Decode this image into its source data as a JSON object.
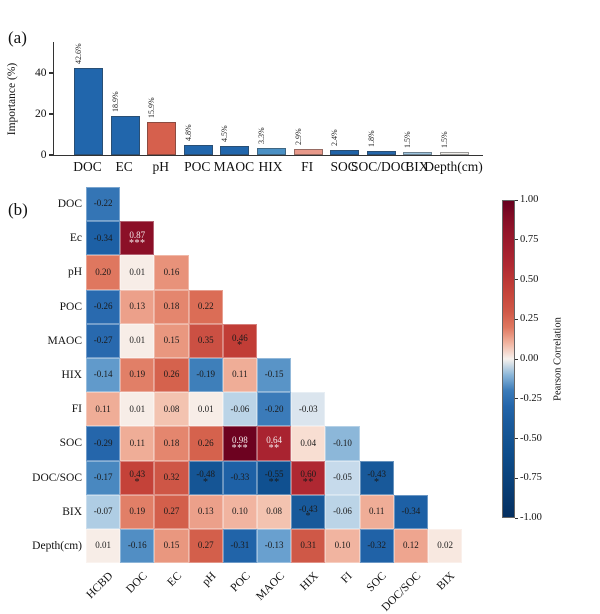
{
  "panel_a": {
    "tag": "(a)"
  },
  "panel_b": {
    "tag": "(b)"
  },
  "chart_data": [
    {
      "type": "bar",
      "ylabel": "Importance (%)",
      "xlabel": "",
      "ytick_labels": [
        "0",
        "20",
        "40"
      ],
      "ytick_values": [
        0,
        20,
        40
      ],
      "ylim": [
        0,
        55
      ],
      "grid": false,
      "categories": [
        "DOC",
        "EC",
        "pH",
        "POC",
        "MAOC",
        "HIX",
        "FI",
        "SOC",
        "SOC/DOC",
        "BIX",
        "Depth(cm)"
      ],
      "values": [
        42.6,
        18.9,
        15.9,
        4.8,
        4.5,
        3.3,
        2.9,
        2.4,
        1.8,
        1.5,
        1.5
      ],
      "value_labels": [
        "42.6%",
        "18.9%",
        "15.9%",
        "4.8%",
        "4.5%",
        "3.3%",
        "2.9%",
        "2.4%",
        "1.8%",
        "1.5%",
        "1.5%"
      ],
      "bar_colors": [
        "#2166ac",
        "#2166ac",
        "#d6604d",
        "#2166ac",
        "#2166ac",
        "#4a90c4",
        "#e8998a",
        "#1f63a8",
        "#2466aa",
        "#9dc4de",
        "#f0efec"
      ]
    },
    {
      "type": "heatmap",
      "shape": "lower-triangle",
      "x_categories": [
        "HCBD",
        "DOC",
        "EC",
        "pH",
        "POC",
        "MAOC",
        "HIX",
        "FI",
        "SOC",
        "DOC/SOC",
        "BIX"
      ],
      "y_categories": [
        "DOC",
        "Ec",
        "pH",
        "POC",
        "MAOC",
        "HIX",
        "FI",
        "SOC",
        "DOC/SOC",
        "BIX",
        "Depth(cm)"
      ],
      "rows": [
        {
          "label": "DOC",
          "values": [
            -0.22
          ],
          "stars": [
            ""
          ]
        },
        {
          "label": "Ec",
          "values": [
            -0.34,
            0.87
          ],
          "stars": [
            "",
            "***"
          ]
        },
        {
          "label": "pH",
          "values": [
            0.2,
            0.01,
            0.16
          ],
          "stars": [
            "",
            "",
            ""
          ]
        },
        {
          "label": "POC",
          "values": [
            -0.26,
            0.13,
            0.18,
            0.22
          ],
          "stars": [
            "",
            "",
            "",
            ""
          ]
        },
        {
          "label": "MAOC",
          "values": [
            -0.27,
            0.01,
            0.15,
            0.35,
            0.46
          ],
          "stars": [
            "",
            "",
            "",
            "",
            "*"
          ]
        },
        {
          "label": "HIX",
          "values": [
            -0.14,
            0.19,
            0.26,
            -0.19,
            0.11,
            -0.15
          ],
          "stars": [
            "",
            "",
            "",
            "",
            "",
            ""
          ]
        },
        {
          "label": "FI",
          "values": [
            0.11,
            0.01,
            0.08,
            0.01,
            -0.06,
            -0.2,
            -0.03
          ],
          "stars": [
            "",
            "",
            "",
            "",
            "",
            "",
            ""
          ]
        },
        {
          "label": "SOC",
          "values": [
            -0.29,
            0.11,
            0.18,
            0.26,
            0.98,
            0.64,
            0.04,
            -0.1
          ],
          "stars": [
            "",
            "",
            "",
            "",
            "***",
            "**",
            "",
            ""
          ]
        },
        {
          "label": "DOC/SOC",
          "values": [
            -0.17,
            0.43,
            0.32,
            -0.48,
            -0.33,
            -0.55,
            0.6,
            -0.05,
            -0.43
          ],
          "stars": [
            "",
            "*",
            "",
            "*",
            "",
            "**",
            "**",
            "",
            "*"
          ]
        },
        {
          "label": "BIX",
          "values": [
            -0.07,
            0.19,
            0.27,
            0.13,
            0.1,
            0.08,
            -0.43,
            -0.06,
            0.11,
            -0.34
          ],
          "stars": [
            "",
            "",
            "",
            "",
            "",
            "",
            "*",
            "",
            "",
            ""
          ]
        },
        {
          "label": "Depth(cm)",
          "values": [
            0.01,
            -0.16,
            0.15,
            0.27,
            -0.31,
            -0.13,
            0.31,
            0.1,
            -0.32,
            0.12,
            0.02
          ],
          "stars": [
            "",
            "",
            "",
            "",
            "",
            "",
            "",
            "",
            "",
            "",
            ""
          ]
        }
      ],
      "colorbar": {
        "label": "Pearson Correlation",
        "tick_labels": [
          "1.00",
          "0.75",
          "0.50",
          "0.25",
          "0.00",
          "-0.25",
          "-0.50",
          "-0.75",
          "-1.00"
        ],
        "vmin": -1.0,
        "vmax": 1.0
      },
      "colormap_anchors": [
        [
          -1.0,
          "#053061"
        ],
        [
          -0.6,
          "#0d4d8c"
        ],
        [
          -0.45,
          "#175797"
        ],
        [
          -0.33,
          "#1e61a6"
        ],
        [
          -0.25,
          "#2b6bb0"
        ],
        [
          -0.18,
          "#4182bc"
        ],
        [
          -0.13,
          "#69a0cf"
        ],
        [
          -0.08,
          "#a3c6e0"
        ],
        [
          -0.04,
          "#d2e1ee"
        ],
        [
          0.0,
          "#f7f2ee"
        ],
        [
          0.04,
          "#f8ded2"
        ],
        [
          0.08,
          "#f3c3b0"
        ],
        [
          0.12,
          "#eea58f"
        ],
        [
          0.17,
          "#e68d75"
        ],
        [
          0.21,
          "#dc7058"
        ],
        [
          0.27,
          "#d35f4b"
        ],
        [
          0.34,
          "#cc5244"
        ],
        [
          0.45,
          "#c23e36"
        ],
        [
          0.62,
          "#ac2531"
        ],
        [
          0.87,
          "#8b0f27"
        ],
        [
          1.0,
          "#67001f"
        ]
      ],
      "dark_text_threshold": 0.63,
      "light_text_color": "#f3e9ea",
      "dark_text_color": "#1a1a1a"
    }
  ]
}
